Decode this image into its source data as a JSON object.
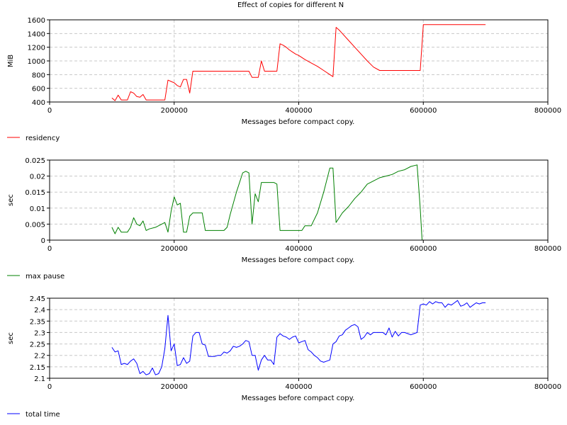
{
  "title": "Effect of copies for different N",
  "chart_data": [
    {
      "type": "line",
      "xlabel": "Messages before compact copy.",
      "ylabel": "MiB",
      "xlim": [
        0,
        800000
      ],
      "ylim": [
        400,
        1600
      ],
      "xticks": [
        0,
        200000,
        400000,
        600000,
        800000
      ],
      "yticks": [
        400,
        600,
        800,
        1000,
        1200,
        1400,
        1600
      ],
      "ytick_labels": [
        "400",
        "600",
        "800",
        "1000",
        "1200",
        "1400",
        "1600"
      ],
      "grid": true,
      "legend": "bottom-left",
      "series": [
        {
          "name": "residency",
          "color": "#ff0000",
          "x": [
            100000,
            105000,
            110000,
            115000,
            120000,
            125000,
            130000,
            135000,
            140000,
            145000,
            150000,
            155000,
            160000,
            170000,
            180000,
            185000,
            190000,
            195000,
            200000,
            205000,
            210000,
            215000,
            220000,
            225000,
            230000,
            240000,
            260000,
            280000,
            300000,
            320000,
            325000,
            330000,
            335000,
            340000,
            345000,
            350000,
            355000,
            360000,
            365000,
            370000,
            375000,
            380000,
            385000,
            390000,
            395000,
            400000,
            405000,
            410000,
            420000,
            430000,
            440000,
            450000,
            455000,
            460000,
            465000,
            470000,
            480000,
            490000,
            500000,
            510000,
            520000,
            530000,
            540000,
            560000,
            580000,
            590000,
            595000,
            600000,
            620000,
            650000,
            700000
          ],
          "y": [
            460,
            420,
            500,
            430,
            430,
            430,
            550,
            530,
            480,
            470,
            510,
            430,
            430,
            430,
            430,
            430,
            720,
            700,
            680,
            640,
            620,
            730,
            730,
            530,
            850,
            850,
            850,
            850,
            850,
            850,
            760,
            760,
            760,
            1000,
            850,
            850,
            850,
            850,
            850,
            1250,
            1230,
            1200,
            1160,
            1130,
            1100,
            1080,
            1050,
            1020,
            970,
            920,
            860,
            800,
            770,
            1490,
            1450,
            1400,
            1300,
            1200,
            1100,
            1000,
            910,
            860,
            860,
            860,
            860,
            860,
            860,
            1530,
            1530,
            1530,
            1530
          ]
        }
      ]
    },
    {
      "type": "line",
      "xlabel": "Messages before compact copy.",
      "ylabel": "sec",
      "xlim": [
        0,
        800000
      ],
      "ylim": [
        0,
        0.025
      ],
      "xticks": [
        0,
        200000,
        400000,
        600000,
        800000
      ],
      "yticks": [
        0,
        0.005,
        0.01,
        0.015,
        0.02,
        0.025
      ],
      "ytick_labels": [
        "0",
        "0.005",
        "0.01",
        "0.015",
        "0.02",
        "0.025"
      ],
      "grid": true,
      "legend": "bottom-left",
      "series": [
        {
          "name": "max pause",
          "color": "#008000",
          "x": [
            100000,
            105000,
            110000,
            115000,
            120000,
            125000,
            130000,
            135000,
            140000,
            145000,
            150000,
            155000,
            160000,
            170000,
            180000,
            185000,
            190000,
            195000,
            200000,
            205000,
            210000,
            215000,
            220000,
            225000,
            230000,
            240000,
            245000,
            250000,
            260000,
            270000,
            280000,
            285000,
            290000,
            300000,
            310000,
            315000,
            320000,
            325000,
            330000,
            335000,
            340000,
            350000,
            360000,
            365000,
            370000,
            380000,
            390000,
            400000,
            405000,
            410000,
            415000,
            420000,
            430000,
            440000,
            450000,
            455000,
            460000,
            470000,
            480000,
            490000,
            500000,
            510000,
            520000,
            530000,
            540000,
            550000,
            560000,
            570000,
            580000,
            590000,
            595000,
            598000
          ],
          "y": [
            0.004,
            0.002,
            0.004,
            0.0025,
            0.0025,
            0.0025,
            0.004,
            0.007,
            0.005,
            0.0045,
            0.006,
            0.003,
            0.0035,
            0.004,
            0.005,
            0.0055,
            0.0025,
            0.009,
            0.0135,
            0.011,
            0.0115,
            0.0025,
            0.0025,
            0.0075,
            0.0085,
            0.0085,
            0.0085,
            0.003,
            0.003,
            0.003,
            0.003,
            0.004,
            0.008,
            0.015,
            0.021,
            0.0215,
            0.021,
            0.005,
            0.0145,
            0.012,
            0.018,
            0.018,
            0.018,
            0.0175,
            0.003,
            0.003,
            0.003,
            0.003,
            0.003,
            0.0045,
            0.0045,
            0.0045,
            0.0085,
            0.015,
            0.0225,
            0.0225,
            0.0055,
            0.0085,
            0.0105,
            0.013,
            0.015,
            0.0175,
            0.0185,
            0.0195,
            0.02,
            0.0205,
            0.0215,
            0.022,
            0.023,
            0.0235,
            0.01,
            0.0
          ]
        }
      ]
    },
    {
      "type": "line",
      "xlabel": "Messages before compact copy.",
      "ylabel": "sec",
      "xlim": [
        0,
        800000
      ],
      "ylim": [
        2.1,
        2.45
      ],
      "xticks": [
        0,
        200000,
        400000,
        600000,
        800000
      ],
      "yticks": [
        2.1,
        2.15,
        2.2,
        2.25,
        2.3,
        2.35,
        2.4,
        2.45
      ],
      "ytick_labels": [
        "2.1",
        "2.15",
        "2.2",
        "2.25",
        "2.3",
        "2.35",
        "2.4",
        "2.45"
      ],
      "grid": true,
      "legend": "bottom-left",
      "series": [
        {
          "name": "total time",
          "color": "#0000ff",
          "x": [
            100000,
            105000,
            110000,
            115000,
            120000,
            125000,
            130000,
            135000,
            140000,
            145000,
            150000,
            155000,
            160000,
            165000,
            170000,
            175000,
            180000,
            185000,
            190000,
            195000,
            200000,
            205000,
            210000,
            215000,
            220000,
            225000,
            230000,
            235000,
            240000,
            245000,
            250000,
            255000,
            260000,
            265000,
            270000,
            275000,
            280000,
            285000,
            290000,
            295000,
            300000,
            305000,
            310000,
            315000,
            320000,
            325000,
            330000,
            335000,
            340000,
            345000,
            350000,
            355000,
            360000,
            365000,
            370000,
            375000,
            380000,
            385000,
            390000,
            395000,
            400000,
            405000,
            410000,
            415000,
            420000,
            425000,
            430000,
            435000,
            440000,
            445000,
            450000,
            455000,
            460000,
            465000,
            470000,
            475000,
            480000,
            485000,
            490000,
            495000,
            500000,
            505000,
            510000,
            515000,
            520000,
            525000,
            530000,
            535000,
            540000,
            545000,
            550000,
            555000,
            560000,
            565000,
            570000,
            575000,
            580000,
            585000,
            590000,
            595000,
            600000,
            605000,
            610000,
            615000,
            620000,
            625000,
            630000,
            635000,
            640000,
            645000,
            650000,
            655000,
            660000,
            665000,
            670000,
            675000,
            680000,
            685000,
            690000,
            695000,
            700000
          ],
          "y": [
            2.235,
            2.215,
            2.22,
            2.16,
            2.165,
            2.16,
            2.175,
            2.185,
            2.165,
            2.12,
            2.13,
            2.115,
            2.12,
            2.145,
            2.115,
            2.12,
            2.15,
            2.23,
            2.375,
            2.22,
            2.25,
            2.155,
            2.16,
            2.19,
            2.165,
            2.175,
            2.285,
            2.3,
            2.3,
            2.25,
            2.245,
            2.195,
            2.195,
            2.195,
            2.2,
            2.2,
            2.215,
            2.21,
            2.22,
            2.24,
            2.235,
            2.24,
            2.25,
            2.265,
            2.26,
            2.2,
            2.2,
            2.135,
            2.18,
            2.2,
            2.18,
            2.18,
            2.16,
            2.28,
            2.295,
            2.285,
            2.28,
            2.27,
            2.28,
            2.285,
            2.255,
            2.26,
            2.265,
            2.225,
            2.215,
            2.2,
            2.19,
            2.175,
            2.17,
            2.175,
            2.18,
            2.25,
            2.26,
            2.285,
            2.29,
            2.31,
            2.32,
            2.33,
            2.335,
            2.325,
            2.27,
            2.28,
            2.3,
            2.29,
            2.3,
            2.3,
            2.3,
            2.3,
            2.29,
            2.32,
            2.28,
            2.305,
            2.285,
            2.3,
            2.3,
            2.295,
            2.29,
            2.295,
            2.3,
            2.42,
            2.425,
            2.42,
            2.435,
            2.425,
            2.435,
            2.43,
            2.43,
            2.41,
            2.425,
            2.42,
            2.43,
            2.44,
            2.415,
            2.42,
            2.43,
            2.41,
            2.42,
            2.43,
            2.425,
            2.43,
            2.43
          ]
        }
      ]
    }
  ]
}
